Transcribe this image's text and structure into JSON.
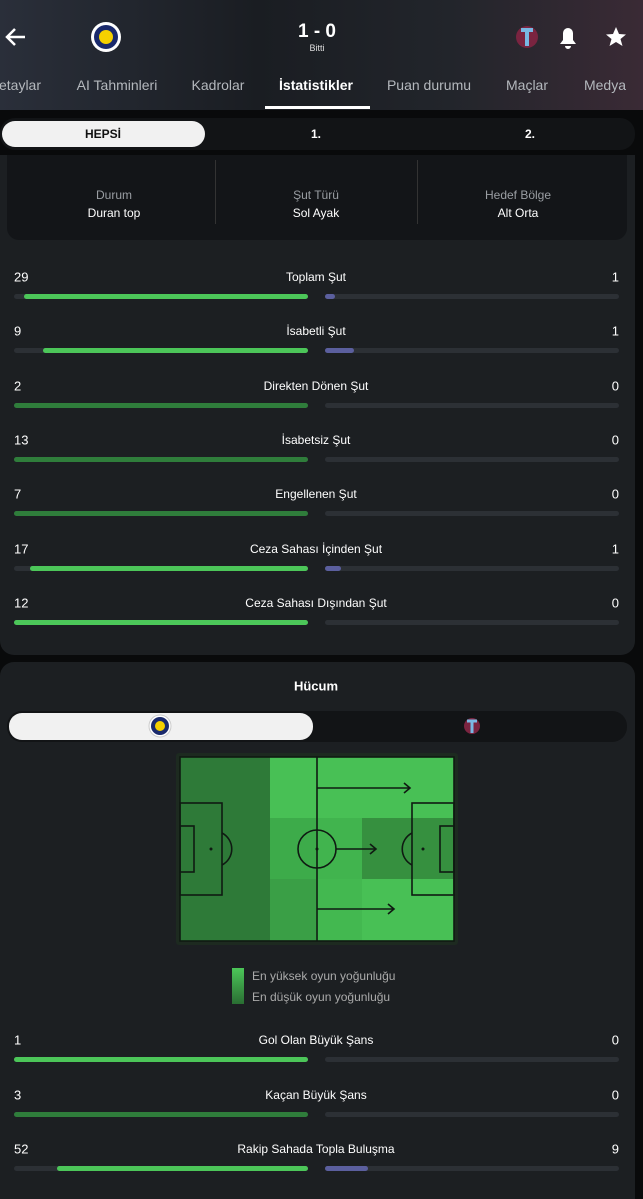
{
  "header": {
    "score": "1 - 0",
    "status": "Bitti"
  },
  "tabs": [
    "etaylar",
    "AI Tahminleri",
    "Kadrolar",
    "İstatistikler",
    "Puan durumu",
    "Maçlar",
    "Medya"
  ],
  "active_tab": 3,
  "period_tabs": [
    "HEPSİ",
    "1.",
    "2."
  ],
  "shot_detail": [
    {
      "label": "Durum",
      "value": "Duran top"
    },
    {
      "label": "Şut Türü",
      "value": "Sol Ayak"
    },
    {
      "label": "Hedef Bölge",
      "value": "Alt Orta"
    }
  ],
  "shot_stats": [
    {
      "home": 29,
      "label": "Toplam Şut",
      "away": 1,
      "home_color": "#4cc659"
    },
    {
      "home": 9,
      "label": "İsabetli Şut",
      "away": 1,
      "home_color": "#4cc659"
    },
    {
      "home": 2,
      "label": "Direkten Dönen Şut",
      "away": 0,
      "home_color": "#2f7d3b"
    },
    {
      "home": 13,
      "label": "İsabetsiz Şut",
      "away": 0,
      "home_color": "#2f7d3b"
    },
    {
      "home": 7,
      "label": "Engellenen Şut",
      "away": 0,
      "home_color": "#2f7d3b"
    },
    {
      "home": 17,
      "label": "Ceza Sahası İçinden Şut",
      "away": 1,
      "home_color": "#4cc659"
    },
    {
      "home": 12,
      "label": "Ceza Sahası Dışından Şut",
      "away": 0,
      "home_color": "#4cc659"
    }
  ],
  "attack": {
    "title": "Hücum",
    "legend_high": "En yüksek oyun yoğunluğu",
    "legend_low": "En düşük oyun yoğunluğu",
    "stats": [
      {
        "home": 1,
        "label": "Gol Olan Büyük Şans",
        "away": 0,
        "home_color": "#4cc659"
      },
      {
        "home": 3,
        "label": "Kaçan Büyük Şans",
        "away": 0,
        "home_color": "#2f7d3b"
      },
      {
        "home": 52,
        "label": "Rakip Sahada Topla Buluşma",
        "away": 9,
        "home_color": "#4cc659"
      }
    ]
  },
  "away_color": "#5b5f9e"
}
